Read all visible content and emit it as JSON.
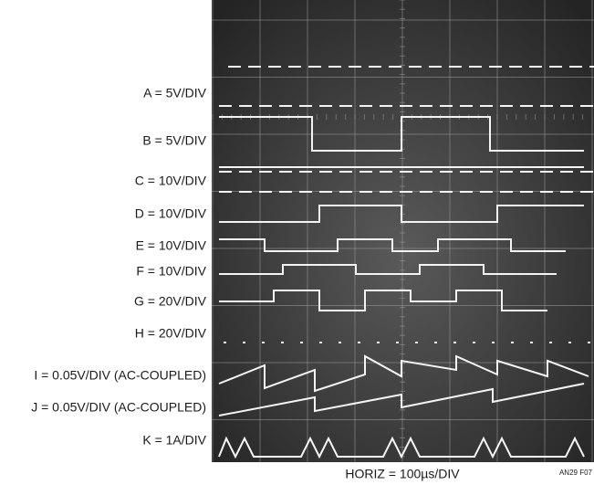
{
  "labels": [
    "A = 5V/DIV",
    "B = 5V/DIV",
    "C = 10V/DIV",
    "D = 10V/DIV",
    "E = 10V/DIV",
    "F = 10V/DIV",
    "G = 20V/DIV",
    "H = 20V/DIV",
    "I = 0.05V/DIV (AC-COUPLED)",
    "J = 0.05V/DIV (AC-COUPLED)",
    "K = 1A/DIV"
  ],
  "horizontal": "HORIZ = 100µs/DIV",
  "figure_id": "AN29 F07"
}
